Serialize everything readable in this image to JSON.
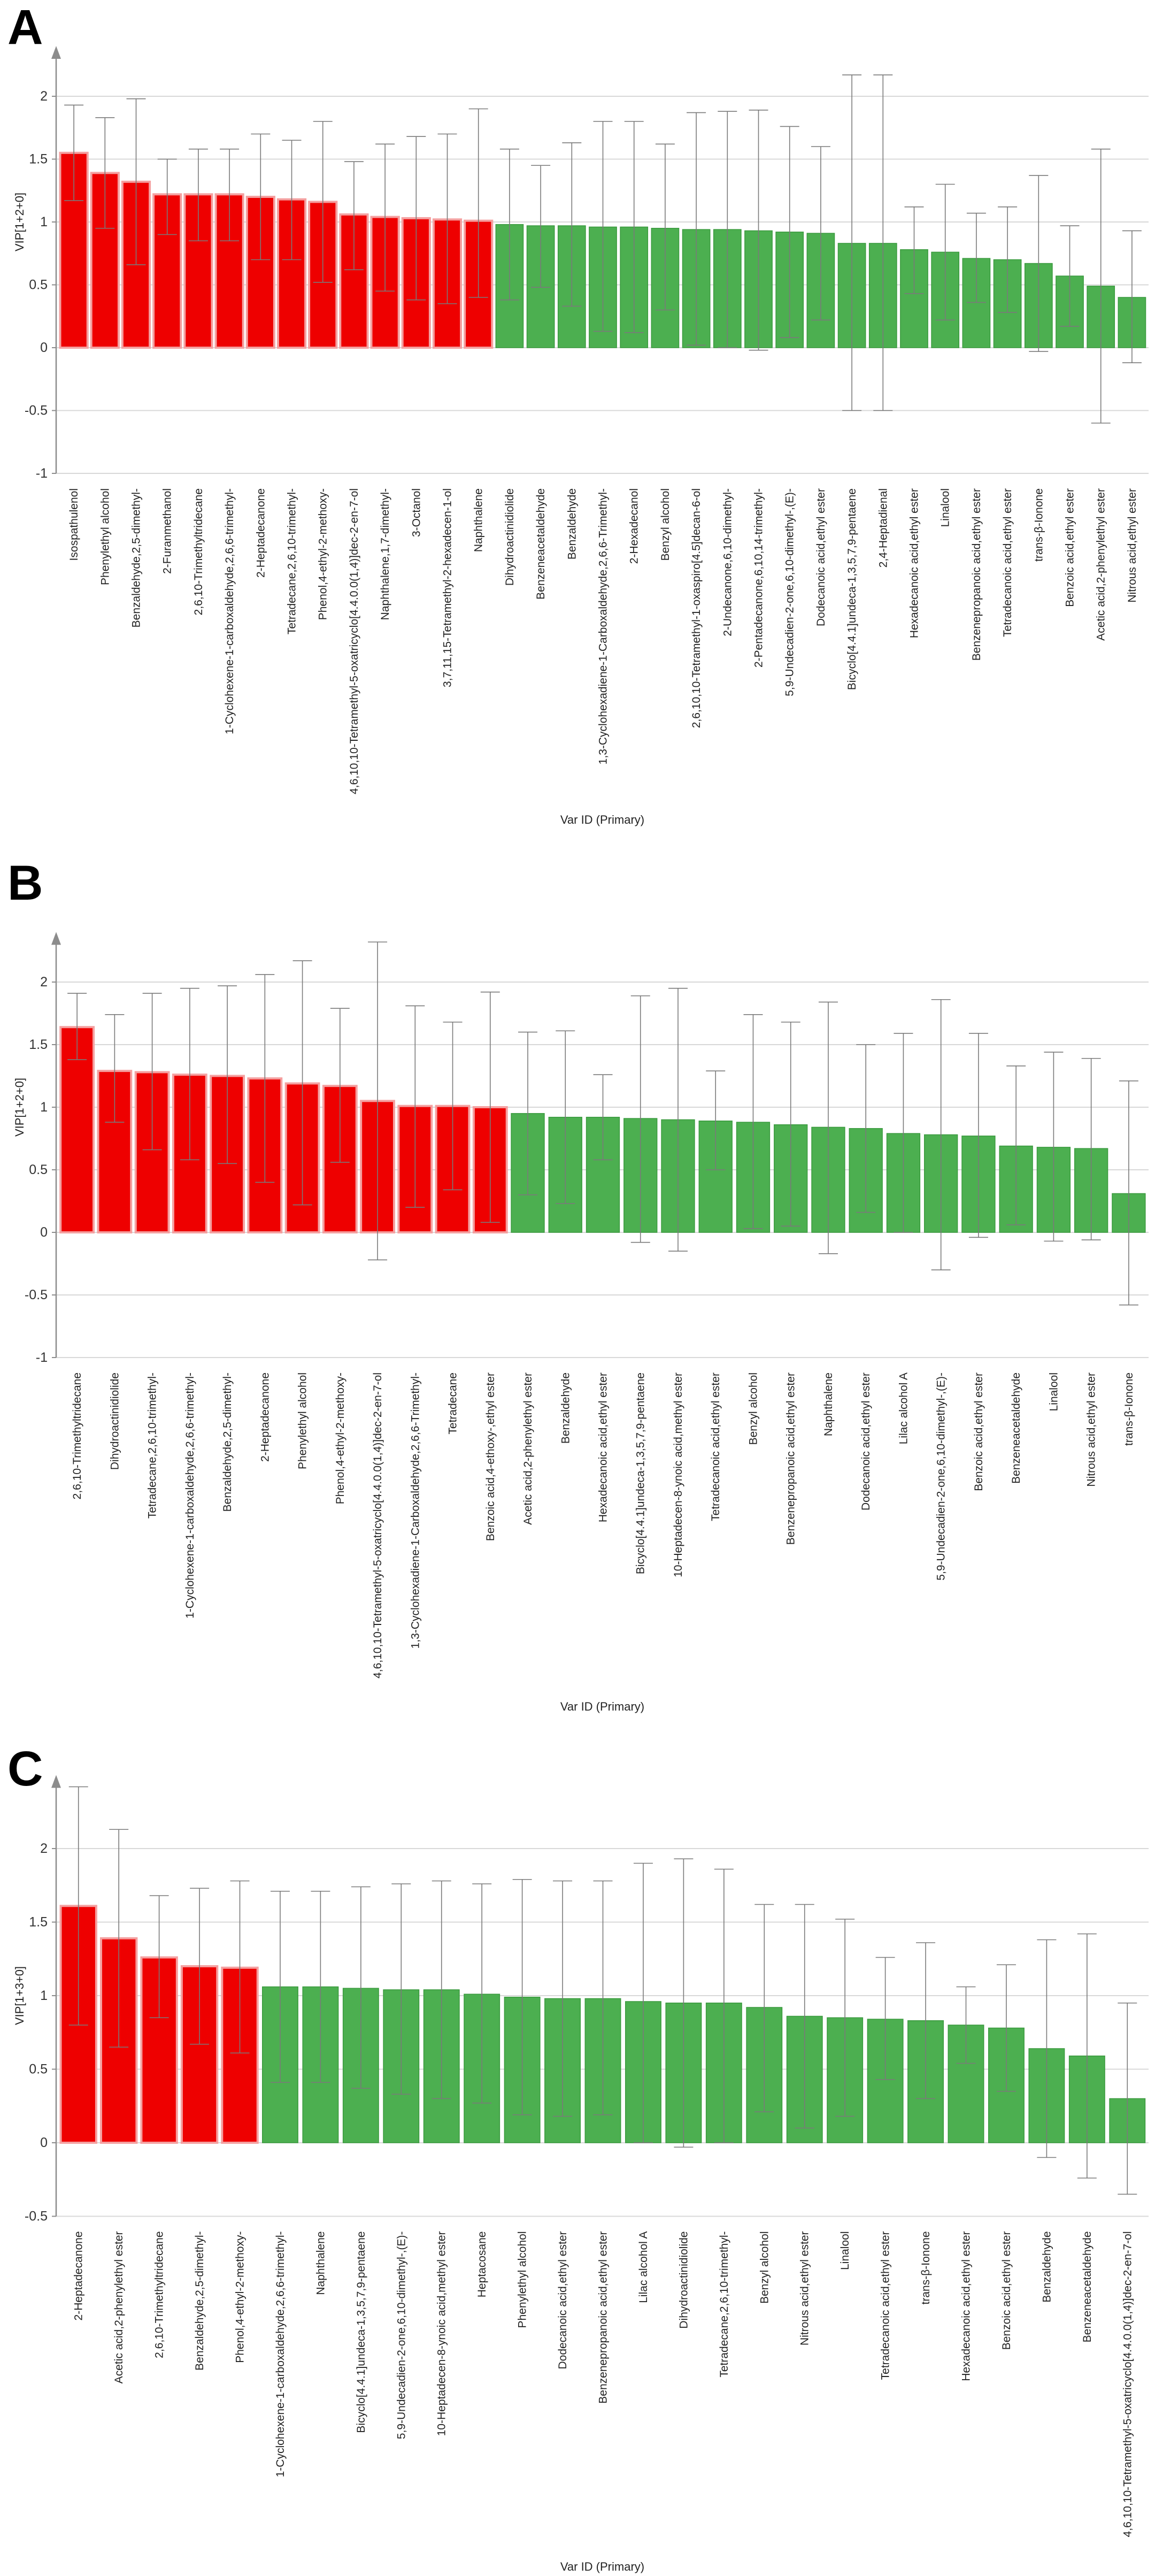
{
  "colors": {
    "important": "#ee0000",
    "important_edge": "#f4a0a0",
    "other": "#4caf50",
    "other_edge": "#3a9a3e",
    "grid": "#d8d8d8",
    "axis": "#8c8c8c",
    "whisker": "#7a7a7a"
  },
  "chart_data": [
    {
      "type": "bar",
      "panel_label": "A",
      "title": "",
      "ylabel": "VIP[1+2+0]",
      "xlabel": "Var ID (Primary)",
      "ylim": [
        -1,
        2.4
      ],
      "yticks": [
        -1,
        -0.5,
        0,
        0.5,
        1,
        1.5,
        2
      ],
      "ytick_labels": [
        "-1",
        "-0.5",
        "0",
        "0.5",
        "1",
        "1.5",
        "2"
      ],
      "highlight_threshold": 1.0,
      "categories": [
        "Isospathulenol",
        "Phenylethyl alcohol",
        "Benzaldehyde,2,5-dimethyl-",
        "2-Furanmethanol",
        "2,6,10-Trimethyltridecane",
        "1-Cyclohexene-1-carboxaldehyde,2,6,6-trimethyl-",
        "2-Heptadecanone",
        "Tetradecane,2,6,10-trimethyl-",
        "Phenol,4-ethyl-2-methoxy-",
        "4,6,10,10-Tetramethyl-5-oxatricyclo[4.4.0.0(1,4)]dec-2-en-7-ol",
        "Naphthalene,1,7-dimethyl-",
        "3-Octanol",
        "3,7,11,15-Tetramethyl-2-hexadecen-1-ol",
        "Naphthalene",
        "Dihydroactinidiolide",
        "Benzeneacetaldehyde",
        "Benzaldehyde",
        "1,3-Cyclohexadiene-1-Carboxaldehyde,2,6,6-Trimethyl-",
        "2-Hexadecanol",
        "Benzyl alcohol",
        "2,6,10,10-Tetramethyl-1-oxaspiro[4.5]decan-6-ol",
        "2-Undecanone,6,10-dimethyl-",
        "2-Pentadecanone,6,10,14-trimethyl-",
        "5,9-Undecadien-2-one,6,10-dimethyl-,(E)-",
        "Dodecanoic acid,ethyl ester",
        "Bicyclo[4.4.1]undeca-1,3,5,7,9-pentaene",
        "2,4-Heptadienal",
        "Hexadecanoic acid,ethyl ester",
        "Linalool",
        "Benzenepropanoic acid,ethyl ester",
        "Tetradecanoic acid,ethyl ester",
        "trans-β-Ionone",
        "Benzoic acid,ethyl ester",
        "Acetic acid,2-phenylethyl ester",
        "Nitrous acid,ethyl ester"
      ],
      "values": [
        1.55,
        1.39,
        1.32,
        1.22,
        1.22,
        1.22,
        1.2,
        1.18,
        1.16,
        1.06,
        1.04,
        1.03,
        1.02,
        1.01,
        0.98,
        0.97,
        0.97,
        0.96,
        0.96,
        0.95,
        0.94,
        0.94,
        0.93,
        0.92,
        0.91,
        0.83,
        0.83,
        0.78,
        0.76,
        0.71,
        0.7,
        0.67,
        0.57,
        0.49,
        0.4
      ],
      "error_low": [
        1.17,
        0.95,
        0.66,
        0.9,
        0.85,
        0.85,
        0.7,
        0.7,
        0.52,
        0.62,
        0.45,
        0.38,
        0.35,
        0.4,
        0.38,
        0.48,
        0.33,
        0.13,
        0.12,
        0.3,
        0.02,
        0.0,
        -0.02,
        0.08,
        0.22,
        -0.5,
        -0.5,
        0.43,
        0.22,
        0.36,
        0.28,
        -0.03,
        0.17,
        -0.6,
        -0.12
      ],
      "error_high": [
        1.93,
        1.83,
        1.98,
        1.5,
        1.58,
        1.58,
        1.7,
        1.65,
        1.8,
        1.48,
        1.62,
        1.68,
        1.7,
        1.9,
        1.58,
        1.45,
        1.63,
        1.8,
        1.8,
        1.62,
        1.87,
        1.88,
        1.89,
        1.76,
        1.6,
        2.17,
        2.17,
        1.12,
        1.3,
        1.07,
        1.12,
        1.37,
        0.97,
        1.58,
        0.93
      ]
    },
    {
      "type": "bar",
      "panel_label": "B",
      "title": "",
      "ylabel": "VIP[1+2+0]",
      "xlabel": "Var ID (Primary)",
      "ylim": [
        -1,
        2.4
      ],
      "yticks": [
        -1,
        -0.5,
        0,
        0.5,
        1,
        1.5,
        2
      ],
      "ytick_labels": [
        "-1",
        "-0.5",
        "0",
        "0.5",
        "1",
        "1.5",
        "2"
      ],
      "highlight_threshold": 1.0,
      "categories": [
        "2,6,10-Trimethyltridecane",
        "Dihydroactinidiolide",
        "Tetradecane,2,6,10-trimethyl-",
        "1-Cyclohexene-1-carboxaldehyde,2,6,6-trimethyl-",
        "Benzaldehyde,2,5-dimethyl-",
        "2-Heptadecanone",
        "Phenylethyl alcohol",
        "Phenol,4-ethyl-2-methoxy-",
        "4,6,10,10-Tetramethyl-5-oxatricyclo[4.4.0.0(1,4)]dec-2-en-7-ol",
        "1,3-Cyclohexadiene-1-Carboxaldehyde,2,6,6-Trimethyl-",
        "Tetradecane",
        "Benzoic acid,4-ethoxy-,ethyl ester",
        "Acetic acid,2-phenylethyl ester",
        "Benzaldehyde",
        "Hexadecanoic acid,ethyl ester",
        "Bicyclo[4.4.1]undeca-1,3,5,7,9-pentaene",
        "10-Heptadecen-8-ynoic acid,methyl ester",
        "Tetradecanoic acid,ethyl ester",
        "Benzyl alcohol",
        "Benzenepropanoic acid,ethyl ester",
        "Naphthalene",
        "Dodecanoic acid,ethyl ester",
        "Lilac alcohol A",
        "5,9-Undecadien-2-one,6,10-dimethyl-,(E)-",
        "Benzoic acid,ethyl ester",
        "Benzeneacetaldehyde",
        "Linalool",
        "Nitrous acid,ethyl ester",
        "trans-β-Ionone"
      ],
      "values": [
        1.64,
        1.29,
        1.28,
        1.26,
        1.25,
        1.23,
        1.19,
        1.17,
        1.05,
        1.01,
        1.01,
        1.0,
        0.95,
        0.92,
        0.92,
        0.91,
        0.9,
        0.89,
        0.88,
        0.86,
        0.84,
        0.83,
        0.79,
        0.78,
        0.77,
        0.69,
        0.68,
        0.67,
        0.31
      ],
      "error_low": [
        1.38,
        0.88,
        0.66,
        0.58,
        0.55,
        0.4,
        0.22,
        0.56,
        -0.22,
        0.2,
        0.34,
        0.08,
        0.3,
        0.23,
        0.58,
        -0.08,
        -0.15,
        0.5,
        0.03,
        0.05,
        -0.17,
        0.16,
        0.0,
        -0.3,
        -0.04,
        0.06,
        -0.07,
        -0.06,
        -0.58
      ],
      "error_high": [
        1.91,
        1.74,
        1.91,
        1.95,
        1.97,
        2.06,
        2.17,
        1.79,
        2.32,
        1.81,
        1.68,
        1.92,
        1.6,
        1.61,
        1.26,
        1.89,
        1.95,
        1.29,
        1.74,
        1.68,
        1.84,
        1.5,
        1.59,
        1.86,
        1.59,
        1.33,
        1.44,
        1.39,
        1.21
      ]
    },
    {
      "type": "bar",
      "panel_label": "C",
      "title": "",
      "ylabel": "VIP[1+3+0]",
      "xlabel": "Var ID (Primary)",
      "ylim": [
        -0.5,
        2.5
      ],
      "yticks": [
        -0.5,
        0,
        0.5,
        1,
        1.5,
        2
      ],
      "ytick_labels": [
        "-0.5",
        "0",
        "0.5",
        "1",
        "1.5",
        "2"
      ],
      "highlight_threshold": 1.1,
      "categories": [
        "2-Heptadecanone",
        "Acetic acid,2-phenylethyl ester",
        "2,6,10-Trimethyltridecane",
        "Benzaldehyde,2,5-dimethyl-",
        "Phenol,4-ethyl-2-methoxy-",
        "1-Cyclohexene-1-carboxaldehyde,2,6,6-trimethyl-",
        "Naphthalene",
        "Bicyclo[4.4.1]undeca-1,3,5,7,9-pentaene",
        "5,9-Undecadien-2-one,6,10-dimethyl-,(E)-",
        "10-Heptadecen-8-ynoic acid,methyl ester",
        "Heptacosane",
        "Phenylethyl alcohol",
        "Dodecanoic acid,ethyl ester",
        "Benzenepropanoic acid,ethyl ester",
        "Lilac alcohol A",
        "Dihydroactinidiolide",
        "Tetradecane,2,6,10-trimethyl-",
        "Benzyl alcohol",
        "Nitrous acid,ethyl ester",
        "Linalool",
        "Tetradecanoic acid,ethyl ester",
        "trans-β-Ionone",
        "Hexadecanoic acid,ethyl ester",
        "Benzoic acid,ethyl ester",
        "Benzaldehyde",
        "Benzeneacetaldehyde",
        "4,6,10,10-Tetramethyl-5-oxatricyclo[4.4.0.0(1,4)]dec-2-en-7-ol"
      ],
      "values": [
        1.61,
        1.39,
        1.26,
        1.2,
        1.19,
        1.06,
        1.06,
        1.05,
        1.04,
        1.04,
        1.01,
        0.99,
        0.98,
        0.98,
        0.96,
        0.95,
        0.95,
        0.92,
        0.86,
        0.85,
        0.84,
        0.83,
        0.8,
        0.78,
        0.64,
        0.59,
        0.3
      ],
      "error_low": [
        0.8,
        0.65,
        0.85,
        0.67,
        0.61,
        0.41,
        0.41,
        0.37,
        0.33,
        0.3,
        0.27,
        0.19,
        0.18,
        0.19,
        0.0,
        -0.03,
        0.0,
        0.21,
        0.1,
        0.18,
        0.43,
        0.3,
        0.54,
        0.35,
        -0.1,
        -0.24,
        -0.35
      ],
      "error_high": [
        2.42,
        2.13,
        1.68,
        1.73,
        1.78,
        1.71,
        1.71,
        1.74,
        1.76,
        1.78,
        1.76,
        1.79,
        1.78,
        1.78,
        1.9,
        1.93,
        1.86,
        1.62,
        1.62,
        1.52,
        1.26,
        1.36,
        1.06,
        1.21,
        1.38,
        1.42,
        0.95
      ]
    }
  ]
}
